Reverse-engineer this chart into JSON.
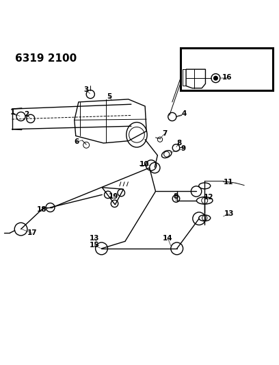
{
  "title": "6319 2100",
  "bg_color": "#ffffff",
  "line_color": "#000000",
  "title_fontsize": 11,
  "label_fontsize": 7.5,
  "fig_width": 4.08,
  "fig_height": 5.33,
  "dpi": 100
}
